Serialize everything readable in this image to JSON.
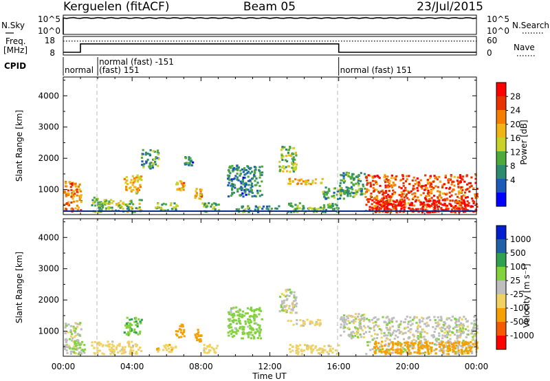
{
  "header": {
    "station": "Kerguelen (fitACF)",
    "beam": "Beam 05",
    "date": "23/Jul/2015"
  },
  "top_panels": {
    "noise": {
      "left_label": "N.Sky",
      "right_label": "N.Search",
      "left_ticks": [
        "10^5",
        "10^0"
      ],
      "right_ticks": [
        "10^5",
        "10^0"
      ],
      "sky_level": 0.85
    },
    "freq": {
      "left_label_line1": "Freq.",
      "left_label_line2": "[MHz]",
      "right_label": "Nave",
      "left_ticks": [
        "18",
        "8"
      ],
      "right_ticks": [
        "60",
        "0"
      ],
      "freq_steps": [
        {
          "t": 0,
          "v": 0.15
        },
        {
          "t": 1,
          "v": 0.15
        },
        {
          "t": 1,
          "v": 0.6
        },
        {
          "t": 16,
          "v": 0.6
        },
        {
          "t": 16,
          "v": 0.15
        },
        {
          "t": 24,
          "v": 0.15
        }
      ],
      "nave_level": 0.75
    },
    "cpid": {
      "label": "CPID",
      "segments": [
        {
          "t": 0,
          "text": "normal",
          "row": 1
        },
        {
          "t": 2,
          "text": "normal (fast) -151",
          "row": 0
        },
        {
          "t": 2,
          "text": "(fast) 151",
          "row": 1
        },
        {
          "t": 16,
          "text": "normal (fast) 151",
          "row": 1
        }
      ]
    }
  },
  "panels": [
    {
      "ylabel": "Slant Range [km]",
      "cbar_label": "Power [dB]",
      "cbar_ticks": [
        "28",
        "24",
        "20",
        "16",
        "12",
        "8",
        "4"
      ]
    },
    {
      "ylabel": "Slant Range [km]",
      "cbar_label": "Velocity [m s⁻¹]",
      "cbar_ticks": [
        "1000",
        "500",
        "100",
        "25",
        "-25",
        "-100",
        "-500",
        "-1000"
      ]
    }
  ],
  "xaxis": {
    "label": "Time UT",
    "ticks": [
      "00:00",
      "04:00",
      "08:00",
      "12:00",
      "16:00",
      "20:00",
      "00:00"
    ]
  },
  "yticks": [
    "4000",
    "3000",
    "2000",
    "1000"
  ],
  "power_colors": [
    "#0000ff",
    "#1c5bb8",
    "#2f8b6e",
    "#4faa3c",
    "#c8d228",
    "#f0b414",
    "#f57d00",
    "#e83200",
    "#ff0000"
  ],
  "velocity_colors": [
    "#ff0000",
    "#f55a00",
    "#f5a000",
    "#f0d264",
    "#bebebe",
    "#82d23c",
    "#2fa050",
    "#2060a8",
    "#0020d0"
  ],
  "chart_data": [
    {
      "type": "heatmap",
      "title": "Power [dB]",
      "xlabel": "Time UT",
      "ylabel": "Slant Range [km]",
      "xlim": [
        "00:00",
        "24:00"
      ],
      "ylim": [
        200,
        4600
      ],
      "colorbar": {
        "label": "Power [dB]",
        "range": [
          0,
          30
        ],
        "ticks": [
          4,
          8,
          12,
          16,
          20,
          24,
          28
        ]
      },
      "patches": [
        {
          "t0": 0.0,
          "t1": 1.0,
          "r0": 300,
          "r1": 1300,
          "level": 22
        },
        {
          "t0": 1.6,
          "t1": 2.2,
          "r0": 300,
          "r1": 800,
          "level": 12
        },
        {
          "t0": 2.0,
          "t1": 4.5,
          "r0": 300,
          "r1": 700,
          "level": 14
        },
        {
          "t0": 3.5,
          "t1": 4.5,
          "r0": 900,
          "r1": 1500,
          "level": 18
        },
        {
          "t0": 4.5,
          "t1": 5.5,
          "r0": 1700,
          "r1": 2300,
          "level": 10
        },
        {
          "t0": 5.3,
          "t1": 6.6,
          "r0": 350,
          "r1": 600,
          "level": 12
        },
        {
          "t0": 6.5,
          "t1": 7.0,
          "r0": 1000,
          "r1": 1300,
          "level": 20
        },
        {
          "t0": 7.0,
          "t1": 7.5,
          "r0": 1800,
          "r1": 2100,
          "level": 8
        },
        {
          "t0": 7.6,
          "t1": 8.0,
          "r0": 700,
          "r1": 1100,
          "level": 20
        },
        {
          "t0": 8.0,
          "t1": 9.0,
          "r0": 300,
          "r1": 600,
          "level": 12
        },
        {
          "t0": 9.5,
          "t1": 11.5,
          "r0": 800,
          "r1": 1800,
          "level": 8
        },
        {
          "t0": 10.0,
          "t1": 12.5,
          "r0": 300,
          "r1": 500,
          "level": 10
        },
        {
          "t0": 12.5,
          "t1": 13.5,
          "r0": 1600,
          "r1": 2400,
          "level": 14
        },
        {
          "t0": 13.0,
          "t1": 15.0,
          "r0": 1200,
          "r1": 1400,
          "level": 18
        },
        {
          "t0": 13.0,
          "t1": 16.0,
          "r0": 300,
          "r1": 600,
          "level": 12
        },
        {
          "t0": 15.0,
          "t1": 16.3,
          "r0": 700,
          "r1": 1100,
          "level": 10
        },
        {
          "t0": 16.0,
          "t1": 17.5,
          "r0": 800,
          "r1": 1600,
          "level": 10
        },
        {
          "t0": 17.5,
          "t1": 24.0,
          "r0": 300,
          "r1": 1500,
          "level": 24
        },
        {
          "t0": 18.0,
          "t1": 24.0,
          "r0": 300,
          "r1": 700,
          "level": 28
        }
      ]
    },
    {
      "type": "heatmap",
      "title": "Velocity",
      "xlabel": "Time UT",
      "ylabel": "Slant Range [km]",
      "xlim": [
        "00:00",
        "24:00"
      ],
      "ylim": [
        200,
        4600
      ],
      "colorbar": {
        "label": "Velocity [m s⁻¹]",
        "ticks": [
          1000,
          500,
          100,
          25,
          -25,
          -100,
          -500,
          -1000
        ]
      },
      "patches": [
        {
          "t0": 0.0,
          "t1": 1.0,
          "r0": 300,
          "r1": 1300,
          "level": 0
        },
        {
          "t0": 0.4,
          "t1": 1.2,
          "r0": 300,
          "r1": 700,
          "level": 50
        },
        {
          "t0": 1.6,
          "t1": 4.5,
          "r0": 300,
          "r1": 700,
          "level": -60
        },
        {
          "t0": 3.5,
          "t1": 4.5,
          "r0": 900,
          "r1": 1500,
          "level": 80
        },
        {
          "t0": 5.3,
          "t1": 6.6,
          "r0": 350,
          "r1": 600,
          "level": -90
        },
        {
          "t0": 6.5,
          "t1": 7.0,
          "r0": 800,
          "r1": 1300,
          "level": -300
        },
        {
          "t0": 7.6,
          "t1": 8.0,
          "r0": 700,
          "r1": 1100,
          "level": -300
        },
        {
          "t0": 8.0,
          "t1": 9.0,
          "r0": 300,
          "r1": 600,
          "level": -60
        },
        {
          "t0": 9.5,
          "t1": 11.5,
          "r0": 800,
          "r1": 1800,
          "level": 60
        },
        {
          "t0": 12.5,
          "t1": 13.5,
          "r0": 1600,
          "r1": 2400,
          "level": 0
        },
        {
          "t0": 13.0,
          "t1": 15.0,
          "r0": 1200,
          "r1": 1400,
          "level": -40
        },
        {
          "t0": 13.0,
          "t1": 16.0,
          "r0": 300,
          "r1": 600,
          "level": -60
        },
        {
          "t0": 16.0,
          "t1": 17.5,
          "r0": 800,
          "r1": 1600,
          "level": 0
        },
        {
          "t0": 17.5,
          "t1": 24.0,
          "r0": 300,
          "r1": 1500,
          "level": 0
        },
        {
          "t0": 18.0,
          "t1": 24.0,
          "r0": 300,
          "r1": 700,
          "level": -200
        }
      ]
    }
  ]
}
